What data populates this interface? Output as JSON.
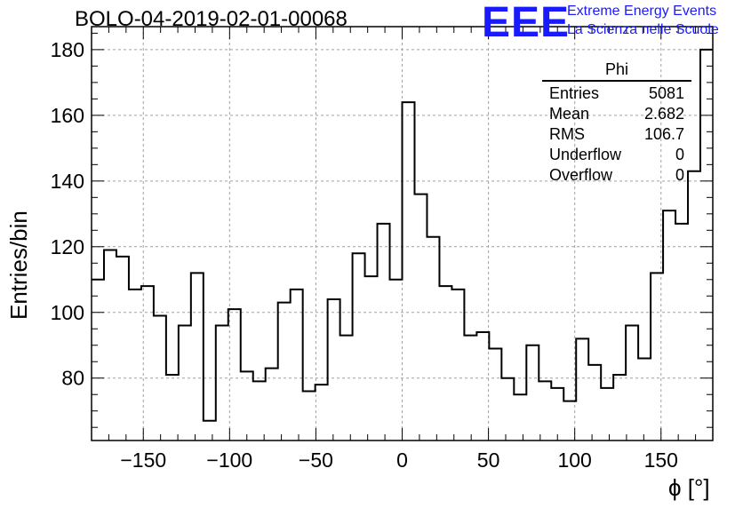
{
  "title": "BOLO-04-2019-02-01-00068",
  "logo": {
    "text": "EEE",
    "line1": "Extreme Energy Events",
    "line2": "La Scienza nelle Scuole",
    "color": "#1a1aff"
  },
  "stats": {
    "title": "Phi",
    "rows": [
      {
        "label": "Entries",
        "value": "5081"
      },
      {
        "label": "Mean",
        "value": "2.682"
      },
      {
        "label": "RMS",
        "value": "106.7"
      },
      {
        "label": "Underflow",
        "value": "0"
      },
      {
        "label": "Overflow",
        "value": "0"
      }
    ]
  },
  "chart_data": {
    "type": "histogram",
    "title": "BOLO-04-2019-02-01-00068",
    "xlabel": "ϕ [°]",
    "ylabel": "Entries/bin",
    "xlim": [
      -180,
      180
    ],
    "ylim": [
      61,
      187
    ],
    "bin_width": 7.2,
    "bin_edges_start": -180,
    "grid": true,
    "x_ticks": [
      -150,
      -100,
      -50,
      0,
      50,
      100,
      150
    ],
    "x_tick_labels": [
      "−150",
      "−100",
      "−50",
      "0",
      "50",
      "100",
      "150"
    ],
    "y_ticks": [
      80,
      100,
      120,
      140,
      160,
      180
    ],
    "y_tick_labels": [
      "80",
      "100",
      "120",
      "140",
      "160",
      "180"
    ],
    "values": [
      110,
      119,
      117,
      107,
      108,
      99,
      81,
      96,
      112,
      67,
      96,
      101,
      82,
      79,
      83,
      103,
      107,
      76,
      78,
      104,
      93,
      118,
      111,
      127,
      110,
      164,
      136,
      123,
      108,
      107,
      93,
      94,
      89,
      80,
      75,
      90,
      79,
      77,
      73,
      92,
      84,
      77,
      81,
      96,
      86,
      112,
      131,
      127,
      143,
      180
    ],
    "line_color": "#000000"
  }
}
